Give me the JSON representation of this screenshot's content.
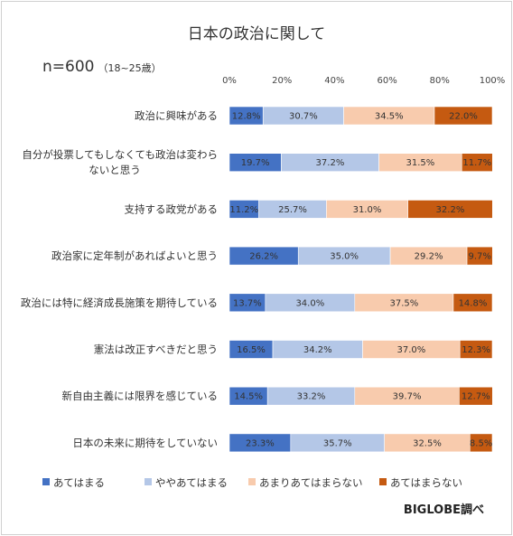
{
  "chart_data": {
    "type": "bar",
    "orientation": "horizontal",
    "stacked": "percent",
    "title": "日本の政治に関して",
    "sample_note": "n=600",
    "sample_note_sub": "（18~25歳）",
    "source": "BIGLOBE調べ",
    "xlim": [
      0,
      100
    ],
    "x_ticks": [
      "0%",
      "20%",
      "40%",
      "60%",
      "80%",
      "100%"
    ],
    "legend_position": "bottom",
    "categories": [
      [
        "政治に興味がある"
      ],
      [
        "自分が投票してもしなくても政治は変わら",
        "ないと思う"
      ],
      [
        "支持する政党がある"
      ],
      [
        "政治家に定年制があればよいと思う"
      ],
      [
        "政治には特に経済成長施策を期待している"
      ],
      [
        "憲法は改正すべきだと思う"
      ],
      [
        "新自由主義には限界を感じている"
      ],
      [
        "日本の未来に期待をしていない"
      ]
    ],
    "series": [
      {
        "name": "あてはまる",
        "color": "#4472C4",
        "values": [
          12.8,
          19.7,
          11.2,
          26.2,
          13.7,
          16.5,
          14.5,
          23.3
        ],
        "labels": [
          "12.8%",
          "19.7%",
          "11.2%",
          "26.2%",
          "13.7%",
          "16.5%",
          "14.5%",
          "23.3%"
        ]
      },
      {
        "name": "ややあてはまる",
        "color": "#B4C7E7",
        "values": [
          30.7,
          37.2,
          25.7,
          35.0,
          34.0,
          34.2,
          33.2,
          35.7
        ],
        "labels": [
          "30.7%",
          "37.2%",
          "25.7%",
          "35.0%",
          "34.0%",
          "34.2%",
          "33.2%",
          "35.7%"
        ]
      },
      {
        "name": "あまりあてはまらない",
        "color": "#F8CBAD",
        "values": [
          34.5,
          31.5,
          31.0,
          29.2,
          37.5,
          37.0,
          39.7,
          32.5
        ],
        "labels": [
          "34.5%",
          "31.5%",
          "31.0%",
          "29.2%",
          "37.5%",
          "37.0%",
          "39.7%",
          "32.5%"
        ]
      },
      {
        "name": "あてはまらない",
        "color": "#C55A11",
        "values": [
          22.0,
          11.7,
          32.2,
          9.7,
          14.8,
          12.3,
          12.7,
          8.5
        ],
        "labels": [
          "22.0%",
          "11.7%",
          "32.2%",
          "9.7%",
          "14.8%",
          "12.3%",
          "12.7%",
          "8.5%"
        ]
      }
    ]
  }
}
